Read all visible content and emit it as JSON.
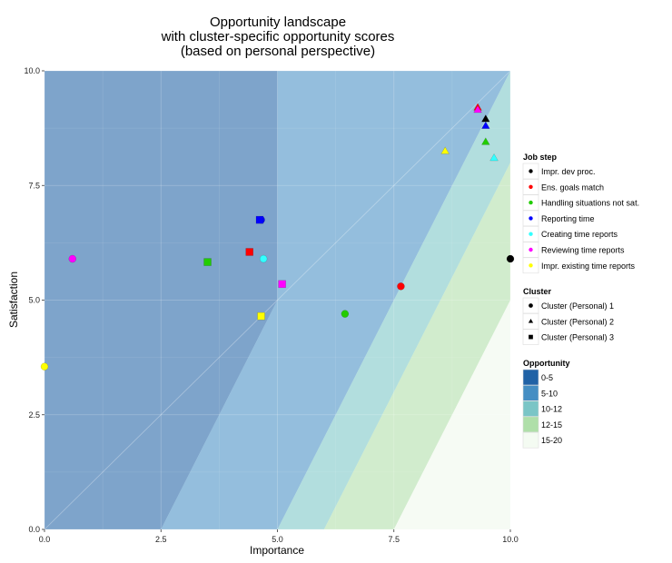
{
  "chart_data": {
    "type": "scatter",
    "title_lines": [
      "Opportunity landscape",
      "with cluster-specific opportunity scores",
      "(based on personal perspective)"
    ],
    "xlabel": "Importance",
    "ylabel": "Satisfaction",
    "xlim": [
      0,
      10
    ],
    "ylim": [
      0,
      10
    ],
    "x_ticks": [
      "0.0",
      "2.5",
      "5.0",
      "7.5",
      "10.0"
    ],
    "y_ticks": [
      "0.0",
      "2.5",
      "5.0",
      "7.5",
      "10.0"
    ],
    "grid": true,
    "legend_position": "right",
    "opportunity_formula": "importance + max(importance - satisfaction, 0)",
    "opportunity_bands": [
      {
        "label": "0-5",
        "min": 0,
        "max": 5,
        "color": "#08519c"
      },
      {
        "label": "5-10",
        "min": 5,
        "max": 10,
        "color": "#3182bd"
      },
      {
        "label": "10-12",
        "min": 10,
        "max": 12,
        "color": "#6bbfc0"
      },
      {
        "label": "12-15",
        "min": 12,
        "max": 15,
        "color": "#a6dba0"
      },
      {
        "label": "15-20",
        "min": 15,
        "max": 20,
        "color": "#edf8e9"
      }
    ],
    "job_steps": [
      {
        "name": "Impr. dev proc.",
        "color": "#000000"
      },
      {
        "name": "Ens. goals match",
        "color": "#ff0000"
      },
      {
        "name": "Handling situations not sat.",
        "color": "#22cc00"
      },
      {
        "name": "Reporting time",
        "color": "#0000ff"
      },
      {
        "name": "Creating time reports",
        "color": "#33ffff"
      },
      {
        "name": "Reviewing time reports",
        "color": "#ff00ff"
      },
      {
        "name": "Impr. existing time reports",
        "color": "#ffff00"
      }
    ],
    "clusters": [
      {
        "name": "Cluster (Personal) 1",
        "shape": "circle"
      },
      {
        "name": "Cluster (Personal) 2",
        "shape": "triangle"
      },
      {
        "name": "Cluster (Personal) 3",
        "shape": "square"
      }
    ],
    "points": [
      {
        "job_step": 0,
        "cluster": 0,
        "x": 10.0,
        "y": 5.9
      },
      {
        "job_step": 1,
        "cluster": 0,
        "x": 7.65,
        "y": 5.3
      },
      {
        "job_step": 2,
        "cluster": 0,
        "x": 6.45,
        "y": 4.7
      },
      {
        "job_step": 3,
        "cluster": 0,
        "x": 4.65,
        "y": 6.75
      },
      {
        "job_step": 4,
        "cluster": 0,
        "x": 4.7,
        "y": 5.9
      },
      {
        "job_step": 5,
        "cluster": 0,
        "x": 0.6,
        "y": 5.9
      },
      {
        "job_step": 6,
        "cluster": 0,
        "x": 0.0,
        "y": 3.55
      },
      {
        "job_step": 0,
        "cluster": 1,
        "x": 9.47,
        "y": 8.95
      },
      {
        "job_step": 1,
        "cluster": 1,
        "x": 9.3,
        "y": 9.2
      },
      {
        "job_step": 2,
        "cluster": 1,
        "x": 9.47,
        "y": 8.45
      },
      {
        "job_step": 3,
        "cluster": 1,
        "x": 9.47,
        "y": 8.8
      },
      {
        "job_step": 4,
        "cluster": 1,
        "x": 9.65,
        "y": 8.1
      },
      {
        "job_step": 5,
        "cluster": 1,
        "x": 9.3,
        "y": 9.15
      },
      {
        "job_step": 6,
        "cluster": 1,
        "x": 8.6,
        "y": 8.25
      },
      {
        "job_step": 1,
        "cluster": 2,
        "x": 4.4,
        "y": 6.05
      },
      {
        "job_step": 2,
        "cluster": 2,
        "x": 3.5,
        "y": 5.83
      },
      {
        "job_step": 3,
        "cluster": 2,
        "x": 4.62,
        "y": 6.75
      },
      {
        "job_step": 5,
        "cluster": 2,
        "x": 5.1,
        "y": 5.35
      },
      {
        "job_step": 6,
        "cluster": 2,
        "x": 4.65,
        "y": 4.65
      }
    ],
    "legend_titles": {
      "job_step": "Job step",
      "cluster": "Cluster",
      "opportunity": "Opportunity"
    }
  }
}
